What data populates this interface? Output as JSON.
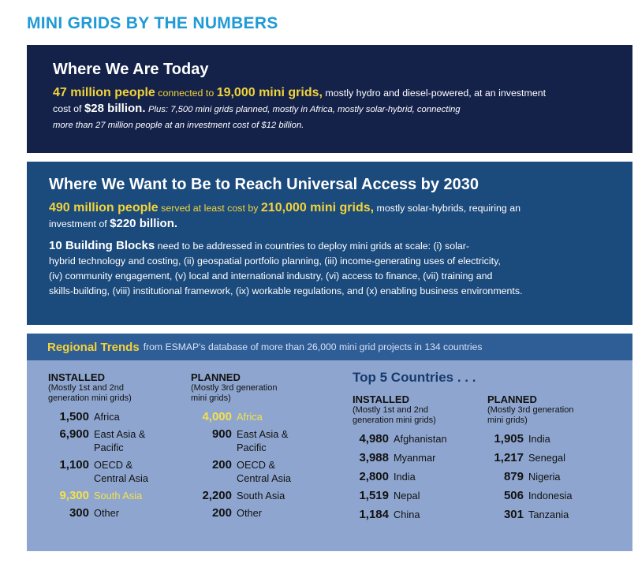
{
  "page_title": "MINI GRIDS BY THE NUMBERS",
  "today": {
    "heading": "Where We Are Today",
    "people": "47 million people",
    "connected_to": "connected to",
    "grids": "19,000 mini grids,",
    "rest": "mostly hydro and diesel-powered, at an investment",
    "cost_prefix": "cost of",
    "cost": "$28 billion.",
    "plus_line1": "Plus: 7,500 mini grids planned, mostly in Africa, mostly solar-hybrid, connecting",
    "plus_line2": "more than 27 million people at an investment cost of $12 billion."
  },
  "want": {
    "heading": "Where We Want to Be to Reach Universal Access by 2030",
    "people": "490 million people",
    "served": "served at least cost by",
    "grids": "210,000 mini grids,",
    "rest": "mostly solar-hybrids, requiring an",
    "inv_prefix": "investment of",
    "inv": "$220 billion.",
    "blocks_title": "10 Building Blocks",
    "blocks_l1": "need to be addressed in countries to deploy mini grids at scale: (i) solar-",
    "blocks_l2": "hybrid technology and costing, (ii) geospatial portfolio planning, (iii) income-generating uses of electricity,",
    "blocks_l3": "(iv) community engagement, (v) local and international industry, (vi) access to finance, (vii) training and",
    "blocks_l4": "skills-building, (viii) institutional framework, (ix) workable regulations, and (x) enabling business environments."
  },
  "trends": {
    "title": "Regional Trends",
    "subtitle": "from ESMAP's database of more than 26,000 mini grid projects in 134 countries",
    "installed": {
      "head": "INSTALLED",
      "sub1": "(Mostly 1st and 2nd",
      "sub2": "generation mini grids)",
      "rows": [
        {
          "num": "1,500",
          "l1": "Africa",
          "l2": "",
          "hot": false
        },
        {
          "num": "6,900",
          "l1": "East Asia &",
          "l2": "Pacific",
          "hot": false
        },
        {
          "num": "1,100",
          "l1": "OECD &",
          "l2": "Central Asia",
          "hot": false
        },
        {
          "num": "9,300",
          "l1": "South Asia",
          "l2": "",
          "hot": true
        },
        {
          "num": "300",
          "l1": "Other",
          "l2": "",
          "hot": false
        }
      ]
    },
    "planned": {
      "head": "PLANNED",
      "sub1": "(Mostly 3rd generation",
      "sub2": "mini grids)",
      "rows": [
        {
          "num": "4,000",
          "l1": "Africa",
          "l2": "",
          "hot": true
        },
        {
          "num": "900",
          "l1": "East Asia &",
          "l2": "Pacific",
          "hot": false
        },
        {
          "num": "200",
          "l1": "OECD &",
          "l2": "Central Asia",
          "hot": false
        },
        {
          "num": "2,200",
          "l1": "South Asia",
          "l2": "",
          "hot": false
        },
        {
          "num": "200",
          "l1": "Other",
          "l2": "",
          "hot": false
        }
      ]
    },
    "top5_title": "Top 5 Countries . . .",
    "top_installed": {
      "head": "INSTALLED",
      "sub1": "(Mostly 1st and 2nd",
      "sub2": "generation mini grids)",
      "rows": [
        {
          "num": "4,980",
          "name": "Afghanistan"
        },
        {
          "num": "3,988",
          "name": "Myanmar"
        },
        {
          "num": "2,800",
          "name": "India"
        },
        {
          "num": "1,519",
          "name": "Nepal"
        },
        {
          "num": "1,184",
          "name": "China"
        }
      ]
    },
    "top_planned": {
      "head": "PLANNED",
      "sub1": "(Mostly 3rd generation",
      "sub2": "mini grids)",
      "rows": [
        {
          "num": "1,905",
          "name": "India"
        },
        {
          "num": "1,217",
          "name": "Senegal"
        },
        {
          "num": "879",
          "name": "Nigeria"
        },
        {
          "num": "506",
          "name": "Indonesia"
        },
        {
          "num": "301",
          "name": "Tanzania"
        }
      ]
    }
  }
}
